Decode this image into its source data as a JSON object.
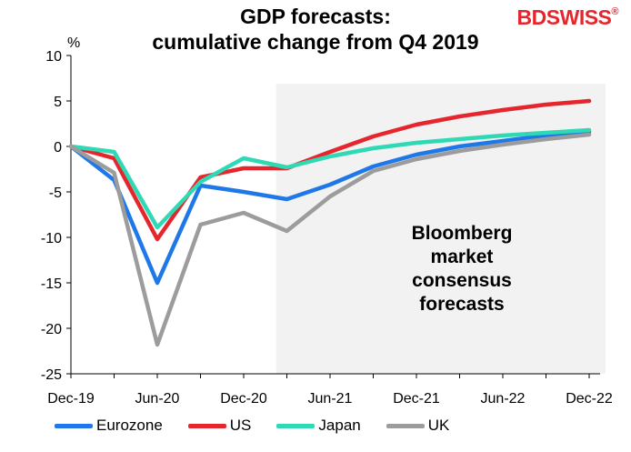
{
  "title_line1": "GDP forecasts:",
  "title_line2": "cumulative change from Q4 2019",
  "logo": {
    "text": "BDSWISS",
    "mark": "®",
    "color": "#e6262d"
  },
  "chart_data": {
    "type": "line",
    "ylabel": "%",
    "ylim": [
      -25,
      10
    ],
    "yticks": [
      10,
      5,
      0,
      -5,
      -10,
      -15,
      -20,
      -25
    ],
    "x": [
      "Dec-19",
      "Mar-20",
      "Jun-20",
      "Sep-20",
      "Dec-20",
      "Mar-21",
      "Jun-21",
      "Sep-21",
      "Dec-21",
      "Mar-22",
      "Jun-22",
      "Sep-22",
      "Dec-22"
    ],
    "xtick_labels": [
      "Dec-19",
      "Jun-20",
      "Dec-20",
      "Jun-21",
      "Dec-21",
      "Jun-22",
      "Dec-22"
    ],
    "forecast_start": "Mar-21",
    "annotation": [
      "Bloomberg",
      "market",
      "consensus",
      "forecasts"
    ],
    "series": [
      {
        "name": "Eurozone",
        "color": "#1f78e8",
        "values": [
          0,
          -3.7,
          -15.0,
          -4.3,
          -5.0,
          -5.8,
          -4.2,
          -2.2,
          -0.9,
          0.0,
          0.6,
          1.2,
          1.6
        ]
      },
      {
        "name": "US",
        "color": "#e6262d",
        "values": [
          0,
          -1.3,
          -10.2,
          -3.4,
          -2.4,
          -2.4,
          -0.6,
          1.1,
          2.4,
          3.3,
          4.0,
          4.6,
          5.0
        ]
      },
      {
        "name": "Japan",
        "color": "#2ed9b4",
        "values": [
          0,
          -0.6,
          -8.9,
          -3.9,
          -1.3,
          -2.3,
          -1.1,
          -0.2,
          0.4,
          0.8,
          1.2,
          1.5,
          1.8
        ]
      },
      {
        "name": "UK",
        "color": "#9c9c9c",
        "values": [
          0,
          -2.9,
          -21.8,
          -8.6,
          -7.3,
          -9.3,
          -5.5,
          -2.7,
          -1.4,
          -0.5,
          0.2,
          0.8,
          1.3
        ]
      }
    ]
  }
}
